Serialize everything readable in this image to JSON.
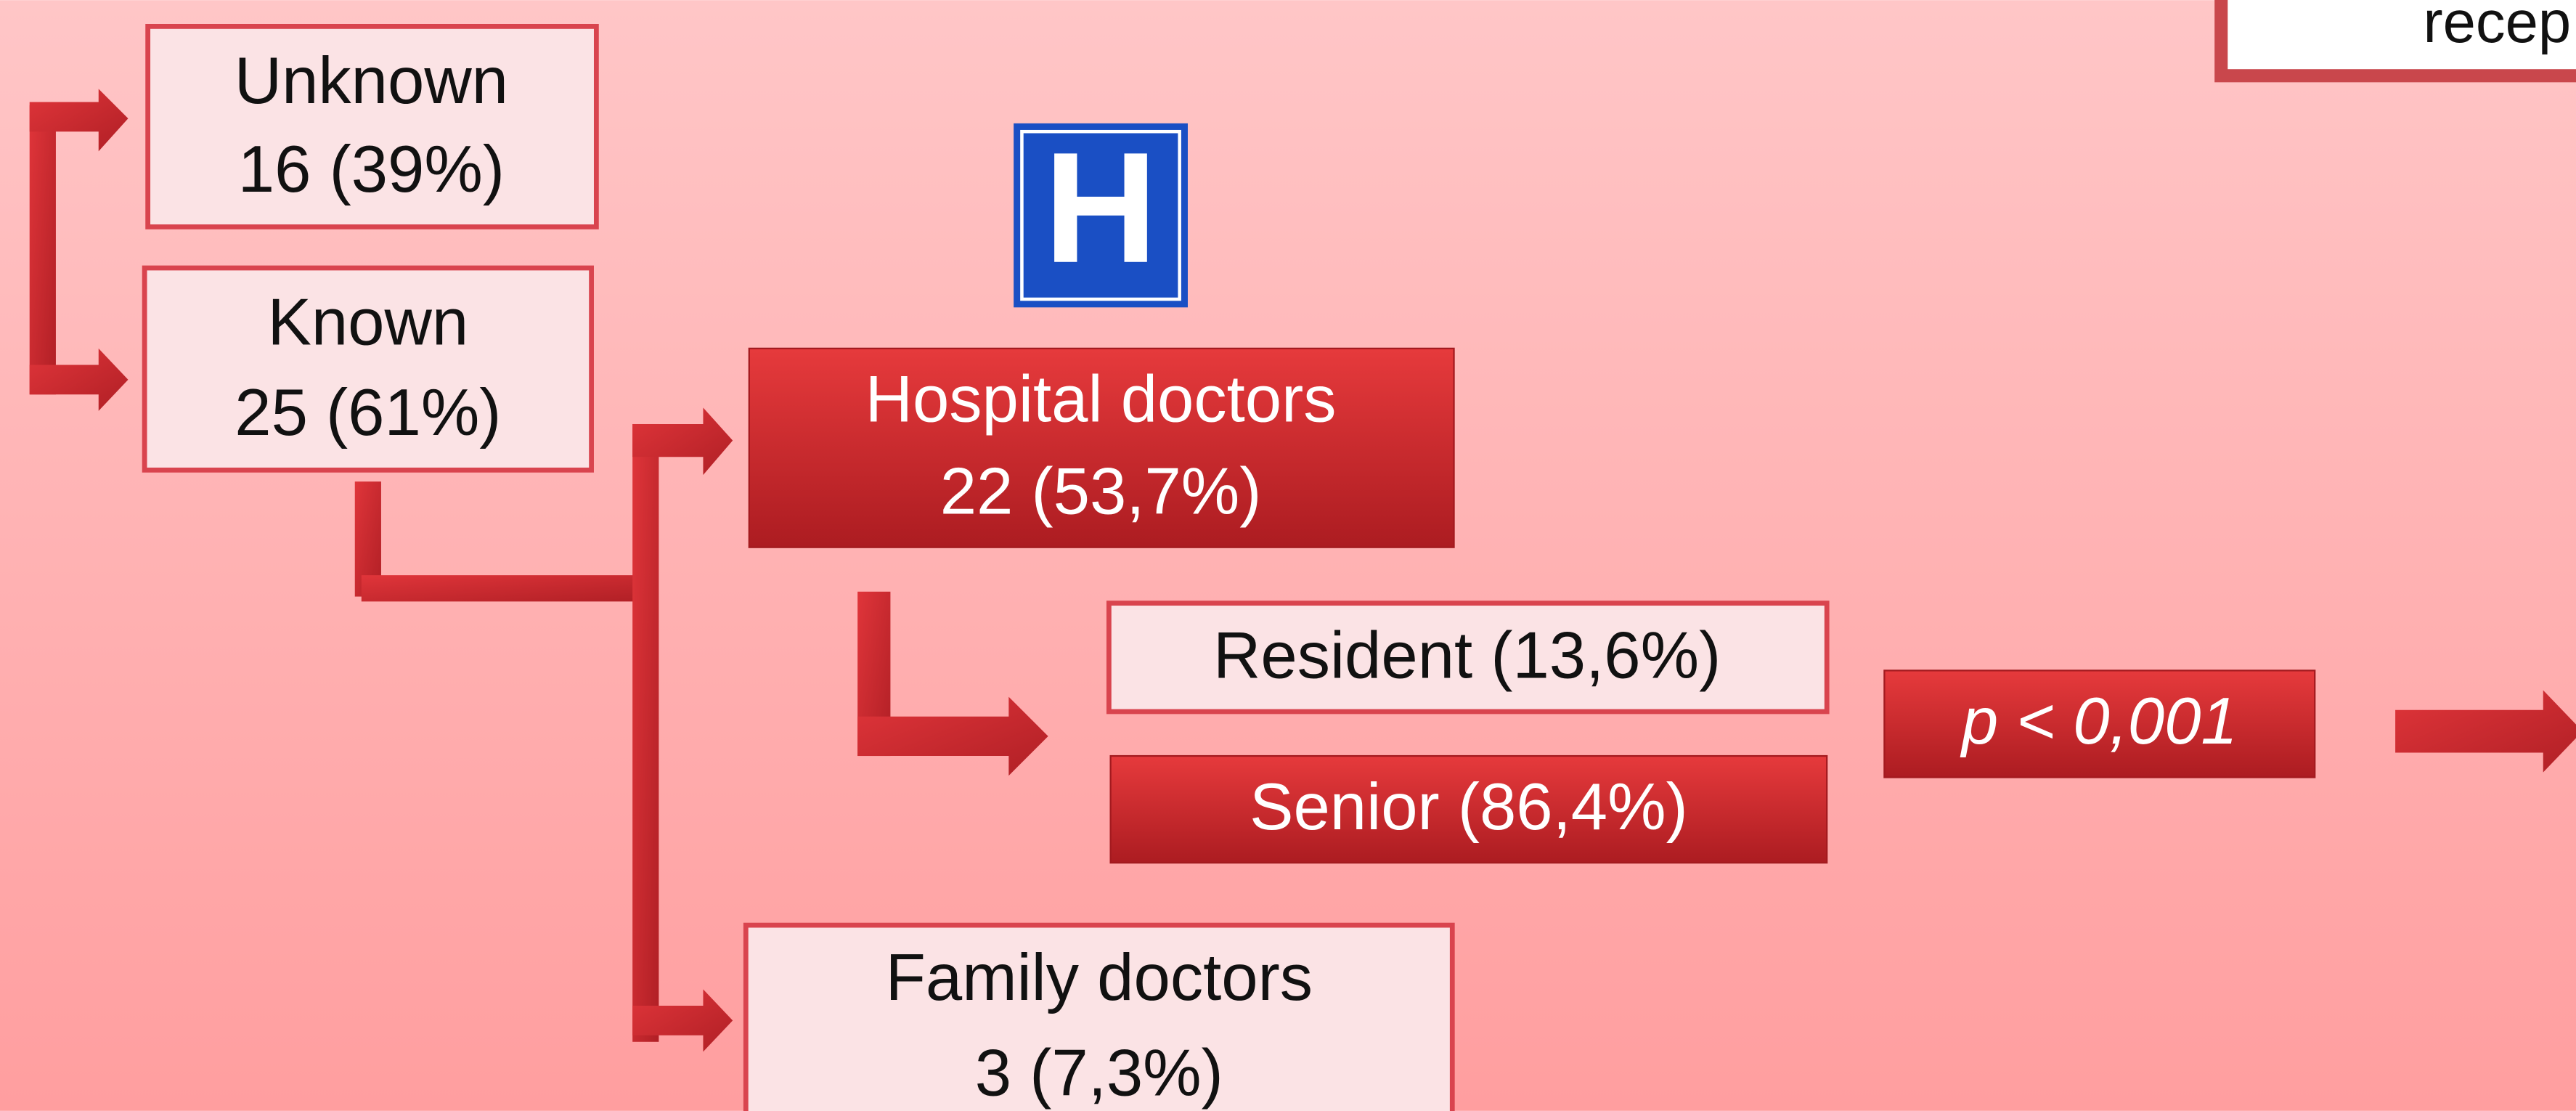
{
  "corner_box": {
    "label": "recep"
  },
  "icon": {
    "label": "H"
  },
  "nodes": {
    "unknown": {
      "lines": [
        "Unknown",
        "16 (39%)"
      ]
    },
    "known": {
      "lines": [
        "Known",
        "25 (61%)"
      ]
    },
    "hospital": {
      "lines": [
        "Hospital doctors",
        "22 (53,7%)"
      ]
    },
    "resident": {
      "label": "Resident (13,6%)"
    },
    "senior": {
      "label": "Senior (86,4%)"
    },
    "family": {
      "lines": [
        "Family doctors",
        "3 (7,3%)"
      ]
    },
    "p_value": {
      "label": "p < 0,001"
    }
  }
}
